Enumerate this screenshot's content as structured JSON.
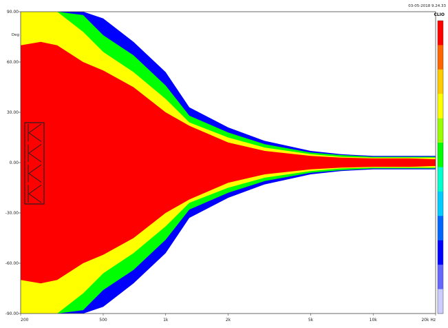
{
  "timestamp": "03-05-2018 9.24.33",
  "brand": "CLIO",
  "chart_data": {
    "type": "heatmap",
    "title": "",
    "xlabel": "",
    "ylabel": "Deg",
    "x_unit": "Hz",
    "x_scale": "log",
    "xlim": [
      200,
      20000
    ],
    "ylim": [
      -90,
      90
    ],
    "x_ticks": [
      {
        "value": 200,
        "label": "200"
      },
      {
        "value": 500,
        "label": "500"
      },
      {
        "value": 1000,
        "label": "1k"
      },
      {
        "value": 2000,
        "label": "2k"
      },
      {
        "value": 5000,
        "label": "5k"
      },
      {
        "value": 10000,
        "label": "10k"
      },
      {
        "value": 20000,
        "label": "20k Hz"
      }
    ],
    "y_ticks": [
      {
        "value": 90,
        "label": "90.00"
      },
      {
        "value": 60,
        "label": "60.00"
      },
      {
        "value": 30,
        "label": "30.00"
      },
      {
        "value": 0,
        "label": "0.00"
      },
      {
        "value": -30,
        "label": "-30.00"
      },
      {
        "value": -60,
        "label": "-60.00"
      },
      {
        "value": -90,
        "label": "-90.00"
      }
    ],
    "color_scale": [
      "#ff0000",
      "#ff6600",
      "#ffcc00",
      "#ffff00",
      "#99ff00",
      "#00ff00",
      "#00ffcc",
      "#00ccff",
      "#0066ff",
      "#0000ff",
      "#6666ff",
      "#ccccff"
    ],
    "contour_half_widths_deg": {
      "freq_hz": [
        200,
        250,
        300,
        400,
        500,
        700,
        1000,
        1300,
        2000,
        3000,
        5000,
        7000,
        10000,
        15000,
        20000
      ],
      "red": [
        70,
        72,
        70,
        60,
        55,
        45,
        30,
        22,
        12,
        7,
        4,
        3,
        2.5,
        2.5,
        2
      ],
      "yellow": [
        90,
        90,
        90,
        78,
        66,
        54,
        38,
        24,
        15,
        9,
        5,
        3.5,
        3,
        3,
        3
      ],
      "green": [
        90,
        90,
        90,
        88,
        76,
        64,
        46,
        28,
        18,
        11,
        6,
        4.5,
        3.5,
        3.5,
        3.5
      ],
      "blue": [
        90,
        90,
        90,
        90,
        86,
        72,
        54,
        33,
        21,
        13,
        7,
        5,
        4,
        4,
        4
      ]
    },
    "grid": false,
    "legend": "right colorbar"
  }
}
